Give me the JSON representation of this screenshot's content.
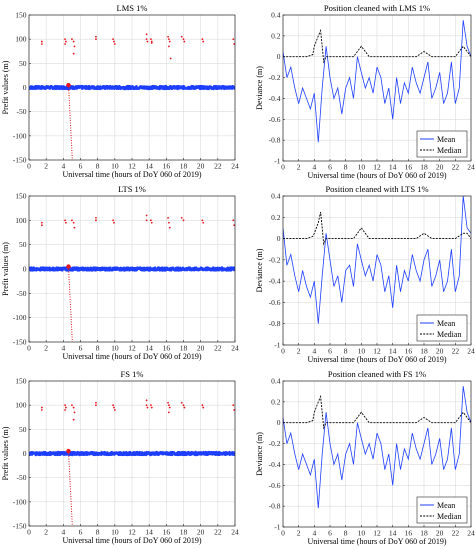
{
  "colors": {
    "blue": "#1f3fff",
    "red": "#e8141e",
    "black": "#000000",
    "grid": "#dcdcdc",
    "axis": "#262626"
  },
  "chart_data": [
    {
      "id": "lms-prefit",
      "type": "scatter",
      "title": "LMS 1%",
      "xlabel": "Universal time (hours of DoY 060 of 2019)",
      "ylabel": "Prefit values (m)",
      "xlim": [
        0,
        24
      ],
      "ylim": [
        -150,
        150
      ],
      "xticks": [
        0,
        2,
        4,
        6,
        8,
        10,
        12,
        14,
        16,
        18,
        20,
        22,
        24
      ],
      "yticks": [
        -150,
        -100,
        -50,
        0,
        50,
        100,
        150
      ],
      "grid": true,
      "series": [
        {
          "color": "blue",
          "style": "band",
          "x_range": [
            0,
            24
          ],
          "y_mean": 0,
          "y_spread": 3
        },
        {
          "color": "red",
          "style": "points",
          "x": [
            1.5,
            1.5,
            4.2,
            4.3,
            4.2,
            5.0,
            5.2,
            5.3,
            5.2,
            7.8,
            7.8,
            9.8,
            9.9,
            10.0,
            13.7,
            13.7,
            13.8,
            14.2,
            14.3,
            14.3,
            16.2,
            16.3,
            16.4,
            16.3,
            16.5,
            17.8,
            18.0,
            18.1,
            20.2,
            20.3,
            23.8,
            23.9
          ],
          "y": [
            95,
            90,
            100,
            95,
            90,
            100,
            95,
            85,
            70,
            105,
            100,
            100,
            95,
            90,
            110,
            100,
            95,
            100,
            95,
            92,
            105,
            100,
            95,
            85,
            60,
            105,
            100,
            95,
            100,
            95,
            100,
            90
          ]
        },
        {
          "color": "red",
          "style": "drop",
          "x0": 4.6,
          "y0": 5,
          "x1": 5.05,
          "y1": -150
        }
      ]
    },
    {
      "id": "lms-position",
      "type": "line",
      "title": "Position cleaned with LMS 1%",
      "xlabel": "Universal time (hours of DoY 060 of 2019)",
      "ylabel": "Deviance (m)",
      "xlim": [
        0,
        24
      ],
      "ylim": [
        -1,
        0.4
      ],
      "xticks": [
        0,
        2,
        4,
        6,
        8,
        10,
        12,
        14,
        16,
        18,
        20,
        22,
        24
      ],
      "yticks": [
        -1,
        -0.8,
        -0.6,
        -0.4,
        -0.2,
        0,
        0.2,
        0.4
      ],
      "grid": true,
      "legend": "bottom-right",
      "series": [
        {
          "name": "Mean",
          "color": "blue",
          "x": [
            0,
            0.5,
            1,
            1.5,
            2,
            2.5,
            3,
            3.5,
            4,
            4.5,
            5,
            5.5,
            6,
            6.5,
            7,
            7.5,
            8,
            8.5,
            9,
            9.5,
            10,
            10.5,
            11,
            11.5,
            12,
            12.5,
            13,
            13.5,
            14,
            14.5,
            15,
            15.5,
            16,
            16.5,
            17,
            17.5,
            18,
            18.5,
            19,
            19.5,
            20,
            20.5,
            21,
            21.5,
            22,
            22.5,
            23,
            23.5,
            24
          ],
          "y": [
            0.05,
            -0.2,
            -0.1,
            -0.3,
            -0.45,
            -0.3,
            -0.4,
            -0.5,
            -0.35,
            -0.82,
            -0.3,
            0.1,
            -0.2,
            -0.4,
            -0.3,
            -0.55,
            -0.3,
            -0.2,
            -0.4,
            0.0,
            -0.15,
            -0.3,
            -0.2,
            -0.35,
            -0.1,
            -0.2,
            -0.45,
            -0.3,
            -0.6,
            -0.2,
            -0.45,
            -0.25,
            -0.35,
            -0.1,
            -0.25,
            -0.35,
            -0.2,
            -0.05,
            -0.4,
            -0.3,
            -0.15,
            -0.45,
            -0.35,
            -0.05,
            -0.45,
            -0.3,
            0.35,
            0.1,
            0.0
          ]
        },
        {
          "name": "Median",
          "color": "black",
          "x": [
            0,
            1,
            2,
            3,
            3.8,
            4,
            4.5,
            4.8,
            5,
            5.2,
            5.5,
            6,
            7,
            8,
            9,
            9.5,
            10,
            10.5,
            11,
            12,
            13,
            14,
            15,
            16,
            17,
            18,
            19,
            20,
            21,
            22,
            23,
            23.5,
            24
          ],
          "y": [
            0,
            0,
            0,
            0,
            0.02,
            0.1,
            0.2,
            0.25,
            0.1,
            -0.05,
            0,
            0,
            0,
            0,
            0,
            0.05,
            0.1,
            0.05,
            0,
            0,
            0,
            0,
            0,
            0,
            0,
            0.05,
            0,
            0,
            0,
            0,
            0.1,
            0.05,
            0
          ]
        }
      ]
    },
    {
      "id": "lts-prefit",
      "type": "scatter",
      "title": "LTS 1%",
      "xlabel": "Universal time (hours of DoY 060 of 2019)",
      "ylabel": "Prefit values (m)",
      "xlim": [
        0,
        24
      ],
      "ylim": [
        -150,
        150
      ],
      "xticks": [
        0,
        2,
        4,
        6,
        8,
        10,
        12,
        14,
        16,
        18,
        20,
        22,
        24
      ],
      "yticks": [
        -150,
        -100,
        -50,
        0,
        50,
        100,
        150
      ],
      "grid": true,
      "series": [
        {
          "color": "blue",
          "style": "band",
          "x_range": [
            0,
            24
          ],
          "y_mean": 0,
          "y_spread": 3
        },
        {
          "color": "red",
          "style": "points",
          "x": [
            1.5,
            1.5,
            4.2,
            4.3,
            5.0,
            5.2,
            5.3,
            7.8,
            7.8,
            9.8,
            9.9,
            13.7,
            13.7,
            14.2,
            14.3,
            16.2,
            16.3,
            16.4,
            17.8,
            18.0,
            20.2,
            20.3,
            23.8,
            23.9
          ],
          "y": [
            95,
            90,
            100,
            95,
            100,
            95,
            85,
            105,
            100,
            100,
            95,
            110,
            100,
            100,
            95,
            105,
            95,
            85,
            105,
            100,
            100,
            95,
            100,
            90
          ]
        },
        {
          "color": "red",
          "style": "drop",
          "x0": 4.6,
          "y0": 5,
          "x1": 5.05,
          "y1": -150
        }
      ]
    },
    {
      "id": "lts-position",
      "type": "line",
      "title": "Position cleaned with LTS 1%",
      "xlabel": "Universal time (hours of DoY 060 of 2019)",
      "ylabel": "Deviance (m)",
      "xlim": [
        0,
        24
      ],
      "ylim": [
        -1,
        0.4
      ],
      "xticks": [
        0,
        2,
        4,
        6,
        8,
        10,
        12,
        14,
        16,
        18,
        20,
        22,
        24
      ],
      "yticks": [
        -1,
        -0.8,
        -0.6,
        -0.4,
        -0.2,
        0,
        0.2,
        0.4
      ],
      "grid": true,
      "legend": "bottom-right",
      "series": [
        {
          "name": "Mean",
          "color": "blue",
          "x": [
            0,
            0.5,
            1,
            1.5,
            2,
            2.5,
            3,
            3.5,
            4,
            4.5,
            5,
            5.5,
            6,
            6.5,
            7,
            7.5,
            8,
            8.5,
            9,
            9.5,
            10,
            10.5,
            11,
            11.5,
            12,
            12.5,
            13,
            13.5,
            14,
            14.5,
            15,
            15.5,
            16,
            16.5,
            17,
            17.5,
            18,
            18.5,
            19,
            19.5,
            20,
            20.5,
            21,
            21.5,
            22,
            22.5,
            23,
            23.5,
            24
          ],
          "y": [
            0.1,
            -0.25,
            -0.15,
            -0.35,
            -0.5,
            -0.3,
            -0.45,
            -0.55,
            -0.4,
            -0.8,
            -0.35,
            0.05,
            -0.2,
            -0.45,
            -0.35,
            -0.6,
            -0.3,
            -0.25,
            -0.45,
            -0.05,
            -0.2,
            -0.35,
            -0.25,
            -0.4,
            -0.15,
            -0.25,
            -0.5,
            -0.35,
            -0.65,
            -0.25,
            -0.5,
            -0.3,
            -0.4,
            -0.15,
            -0.3,
            -0.4,
            -0.2,
            -0.1,
            -0.45,
            -0.35,
            -0.2,
            -0.5,
            -0.4,
            -0.1,
            -0.5,
            -0.35,
            0.4,
            0.1,
            0.05
          ]
        },
        {
          "name": "Median",
          "color": "black",
          "x": [
            0,
            1,
            2,
            3,
            3.8,
            4,
            4.5,
            4.8,
            5,
            5.2,
            5.5,
            6,
            7,
            8,
            9,
            9.5,
            10,
            10.5,
            11,
            12,
            13,
            14,
            15,
            16,
            17,
            18,
            19,
            20,
            21,
            22,
            23,
            23.5,
            24
          ],
          "y": [
            0,
            0,
            0,
            0,
            0.02,
            0.05,
            0.15,
            0.25,
            0.1,
            -0.05,
            0,
            0,
            0,
            0,
            0,
            0.05,
            0.1,
            0.05,
            0,
            0,
            0,
            0,
            0,
            0,
            0,
            0.05,
            0,
            0,
            0,
            0,
            0.05,
            0.05,
            0
          ]
        }
      ]
    },
    {
      "id": "fs-prefit",
      "type": "scatter",
      "title": "FS 1%",
      "xlabel": "Universal time (hours of DoY 060 of 2019)",
      "ylabel": "Prefit values (m)",
      "xlim": [
        0,
        24
      ],
      "ylim": [
        -150,
        150
      ],
      "xticks": [
        0,
        2,
        4,
        6,
        8,
        10,
        12,
        14,
        16,
        18,
        20,
        22,
        24
      ],
      "yticks": [
        -150,
        -100,
        -50,
        0,
        50,
        100,
        150
      ],
      "grid": true,
      "series": [
        {
          "color": "blue",
          "style": "band",
          "x_range": [
            0,
            24
          ],
          "y_mean": 0,
          "y_spread": 3
        },
        {
          "color": "red",
          "style": "points",
          "x": [
            1.5,
            1.5,
            4.2,
            4.3,
            4.2,
            5.0,
            5.2,
            5.3,
            5.2,
            7.8,
            7.8,
            9.8,
            9.9,
            10.0,
            13.7,
            13.7,
            13.8,
            14.2,
            14.3,
            16.2,
            16.3,
            16.4,
            16.3,
            17.8,
            18.0,
            18.1,
            20.2,
            20.3,
            23.8,
            23.9
          ],
          "y": [
            95,
            90,
            100,
            95,
            90,
            100,
            95,
            85,
            70,
            105,
            100,
            100,
            95,
            90,
            110,
            100,
            95,
            100,
            95,
            105,
            100,
            95,
            85,
            105,
            100,
            95,
            100,
            95,
            100,
            90
          ]
        },
        {
          "color": "red",
          "style": "drop",
          "x0": 4.6,
          "y0": 5,
          "x1": 5.05,
          "y1": -150
        }
      ]
    },
    {
      "id": "fs-position",
      "type": "line",
      "title": "Position cleaned with FS 1%",
      "xlabel": "Universal time (hours of DoY 060 of 2019)",
      "ylabel": "Deviance (m)",
      "xlim": [
        0,
        24
      ],
      "ylim": [
        -1,
        0.4
      ],
      "xticks": [
        0,
        2,
        4,
        6,
        8,
        10,
        12,
        14,
        16,
        18,
        20,
        22,
        24
      ],
      "yticks": [
        -1,
        -0.8,
        -0.6,
        -0.4,
        -0.2,
        0,
        0.2,
        0.4
      ],
      "grid": true,
      "legend": "bottom-right",
      "series": [
        {
          "name": "Mean",
          "color": "blue",
          "x": [
            0,
            0.5,
            1,
            1.5,
            2,
            2.5,
            3,
            3.5,
            4,
            4.5,
            5,
            5.5,
            6,
            6.5,
            7,
            7.5,
            8,
            8.5,
            9,
            9.5,
            10,
            10.5,
            11,
            11.5,
            12,
            12.5,
            13,
            13.5,
            14,
            14.5,
            15,
            15.5,
            16,
            16.5,
            17,
            17.5,
            18,
            18.5,
            19,
            19.5,
            20,
            20.5,
            21,
            21.5,
            22,
            22.5,
            23,
            23.5,
            24
          ],
          "y": [
            0.05,
            -0.2,
            -0.1,
            -0.3,
            -0.45,
            -0.3,
            -0.4,
            -0.5,
            -0.35,
            -0.82,
            -0.3,
            0.1,
            -0.2,
            -0.4,
            -0.3,
            -0.55,
            -0.3,
            -0.2,
            -0.4,
            0.0,
            -0.15,
            -0.3,
            -0.2,
            -0.35,
            -0.1,
            -0.2,
            -0.45,
            -0.3,
            -0.6,
            -0.2,
            -0.45,
            -0.25,
            -0.35,
            -0.1,
            -0.25,
            -0.35,
            -0.2,
            -0.05,
            -0.4,
            -0.3,
            -0.15,
            -0.45,
            -0.35,
            -0.05,
            -0.45,
            -0.3,
            0.35,
            0.1,
            0.0
          ]
        },
        {
          "name": "Median",
          "color": "black",
          "x": [
            0,
            1,
            2,
            3,
            3.8,
            4,
            4.5,
            4.8,
            5,
            5.2,
            5.5,
            6,
            7,
            8,
            9,
            9.5,
            10,
            10.5,
            11,
            12,
            13,
            14,
            15,
            16,
            17,
            18,
            19,
            20,
            21,
            22,
            23,
            23.5,
            24
          ],
          "y": [
            0,
            0,
            0,
            0,
            0.02,
            0.1,
            0.2,
            0.25,
            0.1,
            -0.05,
            0,
            0,
            0,
            0,
            0,
            0.05,
            0.1,
            0.05,
            0,
            0,
            0,
            0,
            0,
            0,
            0,
            0.05,
            0,
            0,
            0,
            0,
            0.1,
            0.05,
            0
          ]
        }
      ]
    }
  ]
}
